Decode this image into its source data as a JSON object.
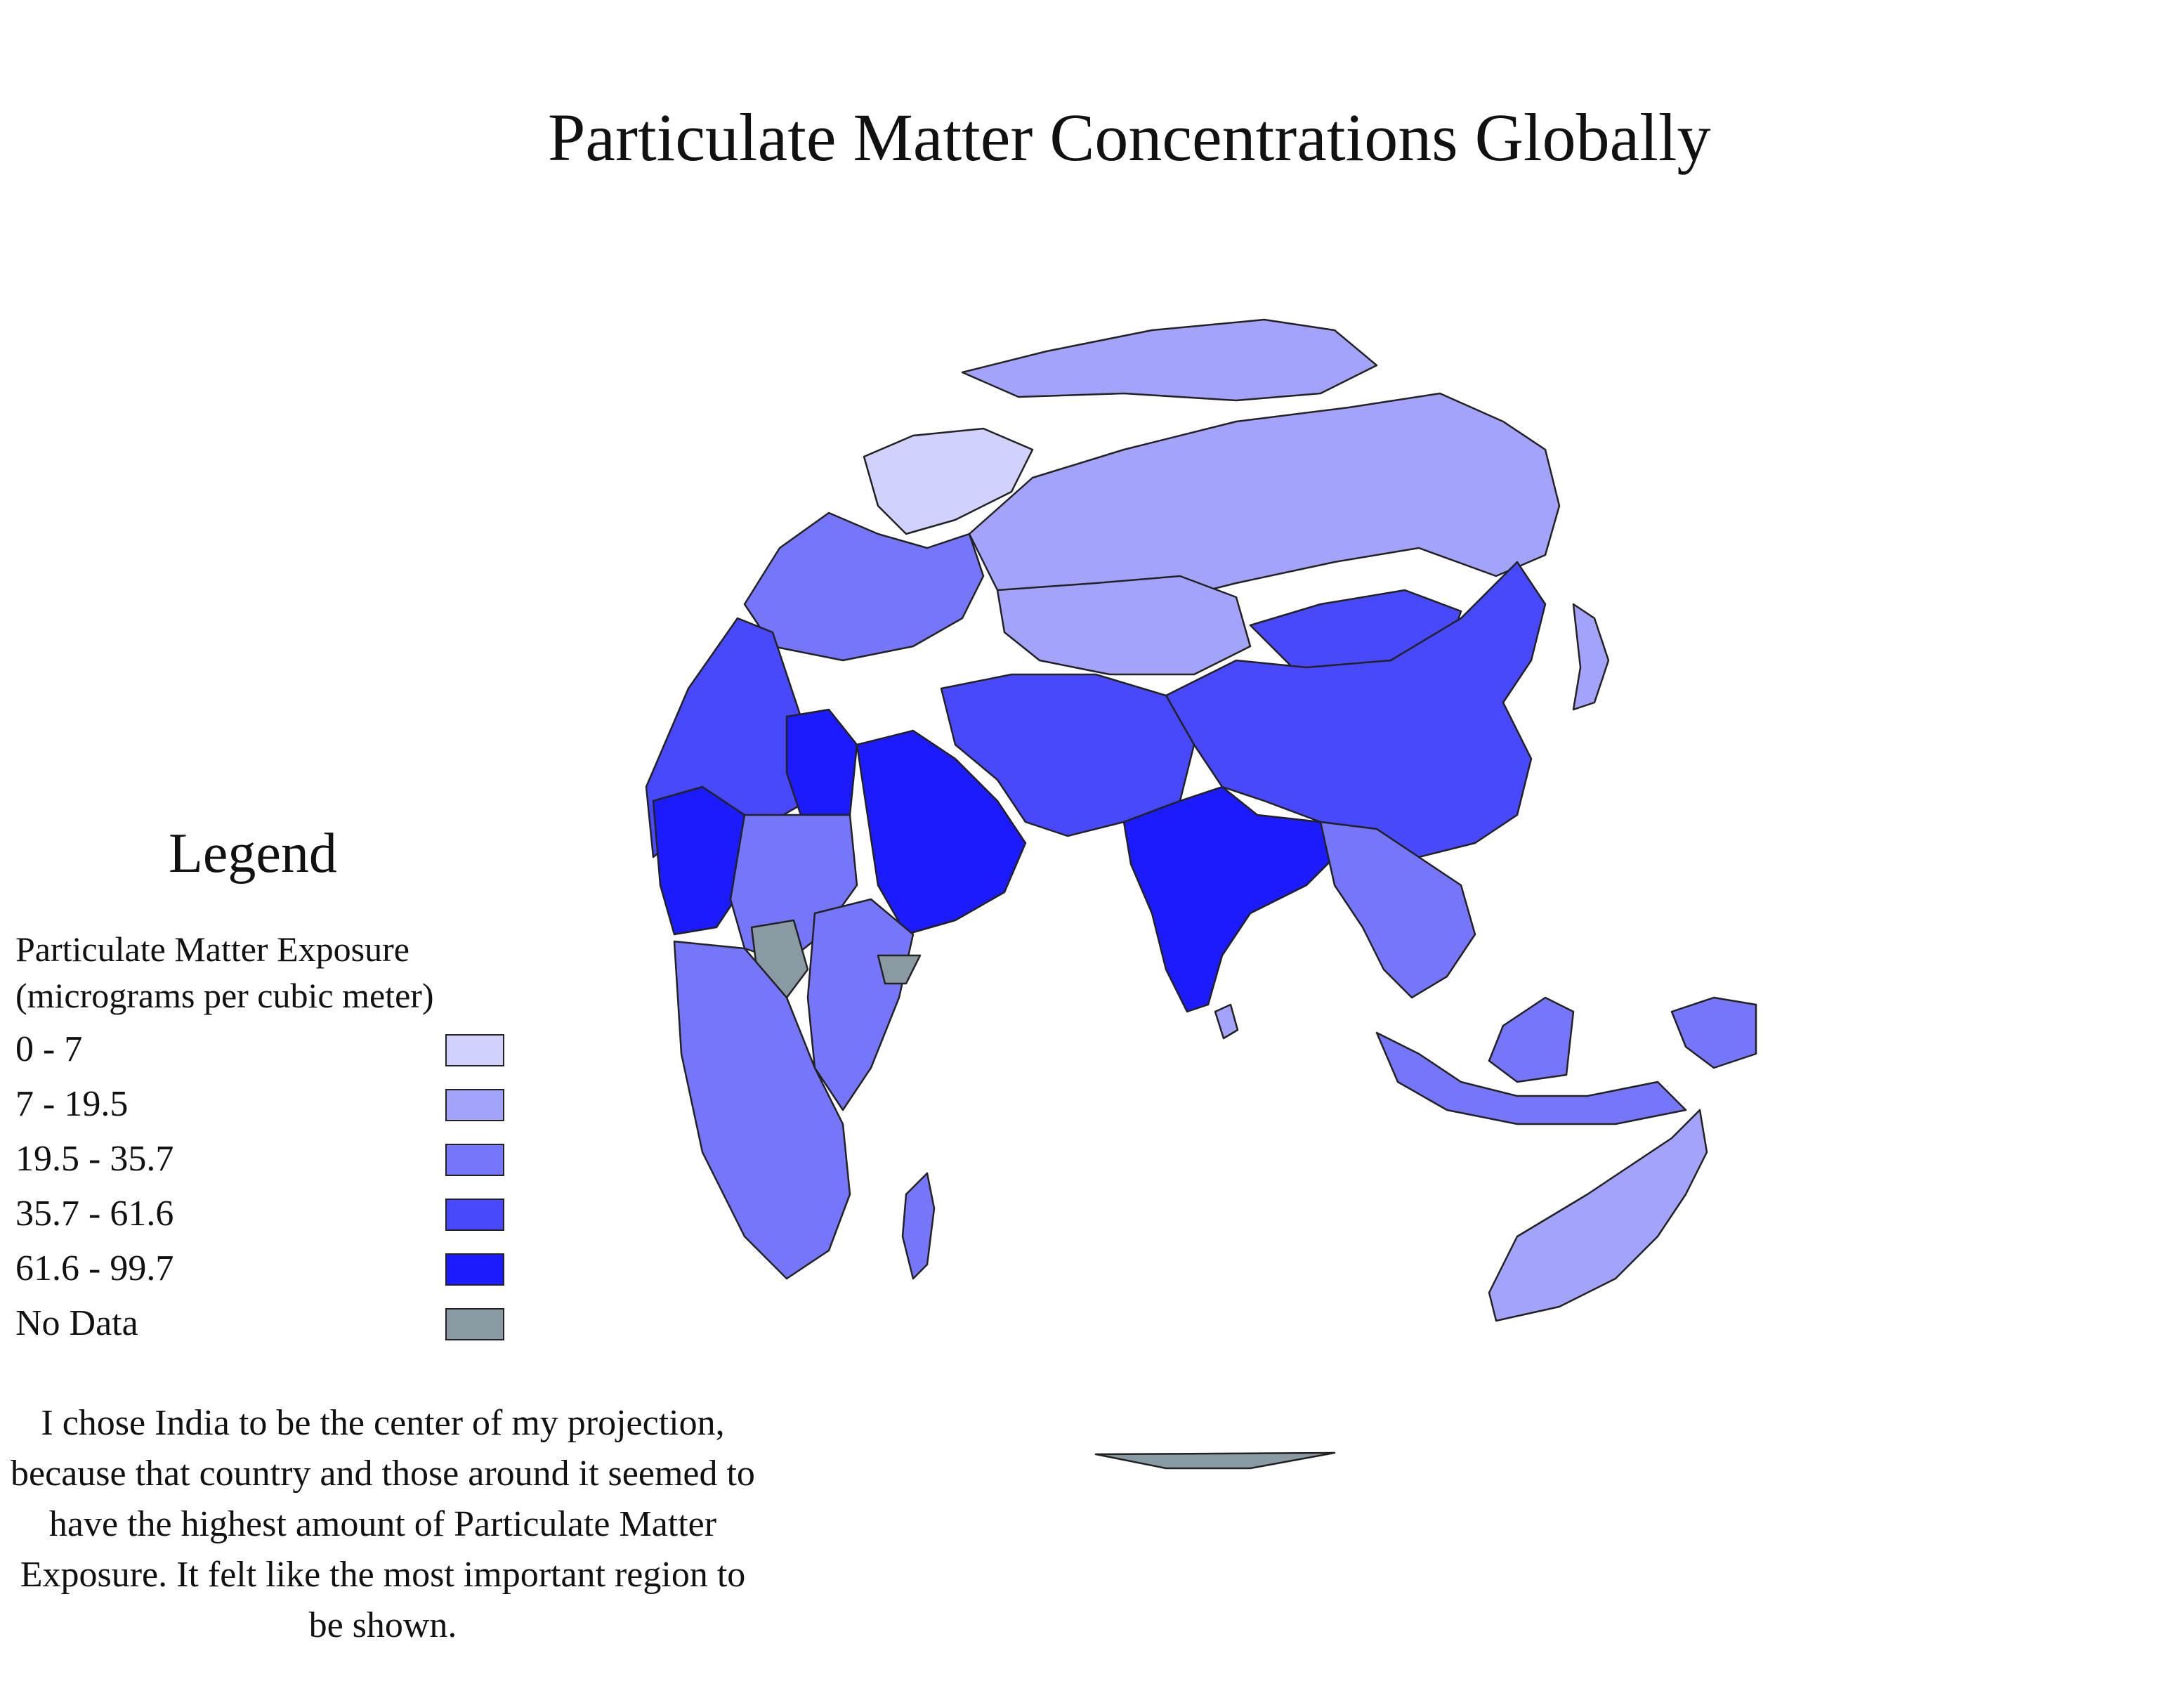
{
  "title": "Particulate Matter Concentrations Globally",
  "legend": {
    "title": "Legend",
    "variable_line1": "Particulate Matter Exposure",
    "variable_line2": "(micrograms per cubic meter)",
    "classes": [
      {
        "label": "0 - 7",
        "color": "#d1d1fd"
      },
      {
        "label": "7 - 19.5",
        "color": "#a3a3fb"
      },
      {
        "label": "19.5 - 35.7",
        "color": "#7676fb"
      },
      {
        "label": "35.7 - 61.6",
        "color": "#4848fc"
      },
      {
        "label": "61.6 - 99.7",
        "color": "#1b1bfd"
      },
      {
        "label": "No Data",
        "color": "#8a9aa2"
      }
    ]
  },
  "note": "I chose India to be the center of my projection,  because that country and those around it seemed to have the highest amount of Particulate Matter Exposure.  It felt like the most important region to be shown.",
  "map": {
    "projection_center": "India",
    "regions": [
      {
        "name": "Greenland / Arctic",
        "class": "7 - 19.5"
      },
      {
        "name": "Scandinavia",
        "class": "0 - 7"
      },
      {
        "name": "Europe",
        "class": "19.5 - 35.7"
      },
      {
        "name": "Russia",
        "class": "7 - 19.5"
      },
      {
        "name": "Kazakhstan",
        "class": "7 - 19.5"
      },
      {
        "name": "Mongolia",
        "class": "35.7 - 61.6"
      },
      {
        "name": "China",
        "class": "35.7 - 61.6"
      },
      {
        "name": "India",
        "class": "61.6 - 99.7"
      },
      {
        "name": "Pakistan",
        "class": "35.7 - 61.6"
      },
      {
        "name": "Iran",
        "class": "35.7 - 61.6"
      },
      {
        "name": "Saudi Arabia",
        "class": "61.6 - 99.7"
      },
      {
        "name": "Egypt",
        "class": "61.6 - 99.7"
      },
      {
        "name": "North Africa",
        "class": "35.7 - 61.6"
      },
      {
        "name": "Sahel",
        "class": "61.6 - 99.7"
      },
      {
        "name": "South Sudan",
        "class": "No Data"
      },
      {
        "name": "East Africa",
        "class": "19.5 - 35.7"
      },
      {
        "name": "Southern Africa",
        "class": "19.5 - 35.7"
      },
      {
        "name": "Madagascar",
        "class": "19.5 - 35.7"
      },
      {
        "name": "Southeast Asia",
        "class": "19.5 - 35.7"
      },
      {
        "name": "Indonesia",
        "class": "19.5 - 35.7"
      },
      {
        "name": "Japan",
        "class": "7 - 19.5"
      },
      {
        "name": "Australia",
        "class": "7 - 19.5"
      },
      {
        "name": "Antarctica",
        "class": "No Data"
      }
    ]
  }
}
